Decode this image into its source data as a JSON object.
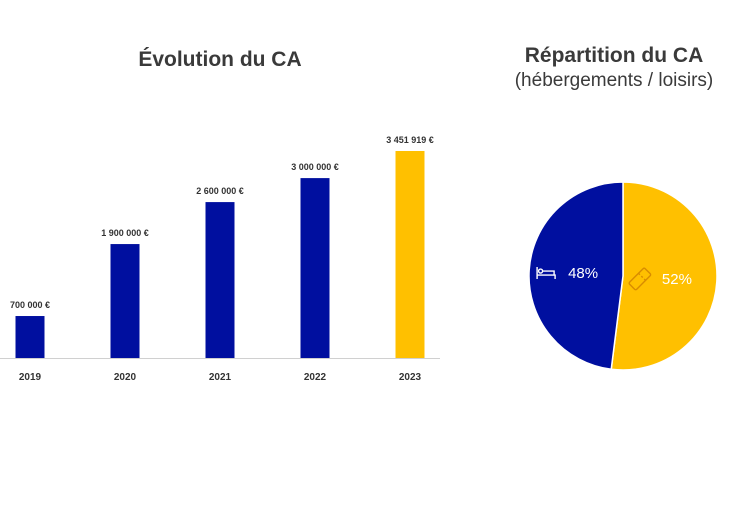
{
  "chart_data": [
    {
      "type": "bar",
      "title": "Évolution du CA",
      "categories": [
        "2019",
        "2020",
        "2021",
        "2022",
        "2023"
      ],
      "values": [
        700000,
        1900000,
        2600000,
        3000000,
        3451919
      ],
      "value_labels": [
        "700 000 €",
        "1 900 000 €",
        "2 600 000 €",
        "3 000 000 €",
        "3 451 919 €"
      ],
      "colors": [
        "#000f9f",
        "#000f9f",
        "#000f9f",
        "#000f9f",
        "#ffc000"
      ],
      "ylim": [
        0,
        3451919
      ]
    },
    {
      "type": "pie",
      "title": "Répartition du CA",
      "subtitle": "(hébergements / loisirs)",
      "slices": [
        {
          "label": "48%",
          "value": 48,
          "color": "#000f9f",
          "icon": "bed-icon"
        },
        {
          "label": "52%",
          "value": 52,
          "color": "#ffc000",
          "icon": "ticket-icon"
        }
      ]
    }
  ]
}
